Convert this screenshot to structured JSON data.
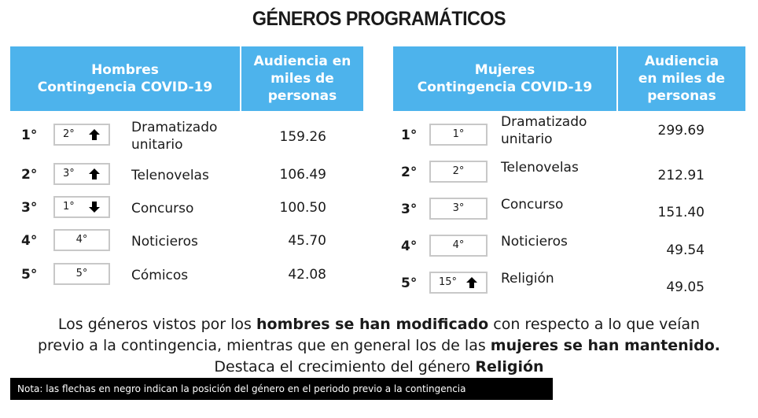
{
  "title": "GÉNEROS PROGRAMÁTICOS",
  "men": {
    "header_genre_line1": "Hombres",
    "header_genre_line2": "Contingencia COVID-19",
    "header_audience_line1": "Audiencia en",
    "header_audience_line2": "miles de",
    "header_audience_line3": "personas",
    "rows": [
      {
        "rank": "1°",
        "previous": "2°",
        "arrow": "up",
        "genre_line1": "Dramatizado",
        "genre_line2": "unitario",
        "audience": "159.26"
      },
      {
        "rank": "2°",
        "previous": "3°",
        "arrow": "up",
        "genre_line1": "Telenovelas",
        "genre_line2": "",
        "audience": "106.49"
      },
      {
        "rank": "3°",
        "previous": "1°",
        "arrow": "down",
        "genre_line1": "Concurso",
        "genre_line2": "",
        "audience": "100.50"
      },
      {
        "rank": "4°",
        "previous": "4°",
        "arrow": "none",
        "genre_line1": "Noticieros",
        "genre_line2": "",
        "audience": "45.70"
      },
      {
        "rank": "5°",
        "previous": "5°",
        "arrow": "none",
        "genre_line1": "Cómicos",
        "genre_line2": "",
        "audience": "42.08"
      }
    ]
  },
  "women": {
    "header_genre_line1": "Mujeres",
    "header_genre_line2": "Contingencia COVID-19",
    "header_audience_line1": "Audiencia",
    "header_audience_line2": "en miles de",
    "header_audience_line3": "personas",
    "rows": [
      {
        "rank": "1°",
        "previous": "1°",
        "arrow": "none",
        "genre_line1": "Dramatizado",
        "genre_line2": "unitario",
        "audience": "299.69"
      },
      {
        "rank": "2°",
        "previous": "2°",
        "arrow": "none",
        "genre_line1": "Telenovelas",
        "genre_line2": "",
        "audience": "212.91"
      },
      {
        "rank": "3°",
        "previous": "3°",
        "arrow": "none",
        "genre_line1": "Concurso",
        "genre_line2": "",
        "audience": "151.40"
      },
      {
        "rank": "4°",
        "previous": "4°",
        "arrow": "none",
        "genre_line1": "Noticieros",
        "genre_line2": "",
        "audience": "49.54"
      },
      {
        "rank": "5°",
        "previous": "15°",
        "arrow": "up",
        "genre_line1": "Religión",
        "genre_line2": "",
        "audience": "49.05"
      }
    ]
  },
  "summary": {
    "p1": "Los géneros vistos por los ",
    "b1": "hombres se han modificado",
    "p2": " con respecto a lo que veían",
    "p3": "previo a la contingencia, mientras que en general los de las ",
    "b2": "mujeres se han mantenido.",
    "p4": "Destaca el crecimiento del género ",
    "b3": "Religión"
  },
  "note": "Nota: las flechas en negro indican la posición del género en el periodo previo a la contingencia",
  "colors": {
    "header_bg": "#4db3ec",
    "note_bg": "#000000"
  }
}
